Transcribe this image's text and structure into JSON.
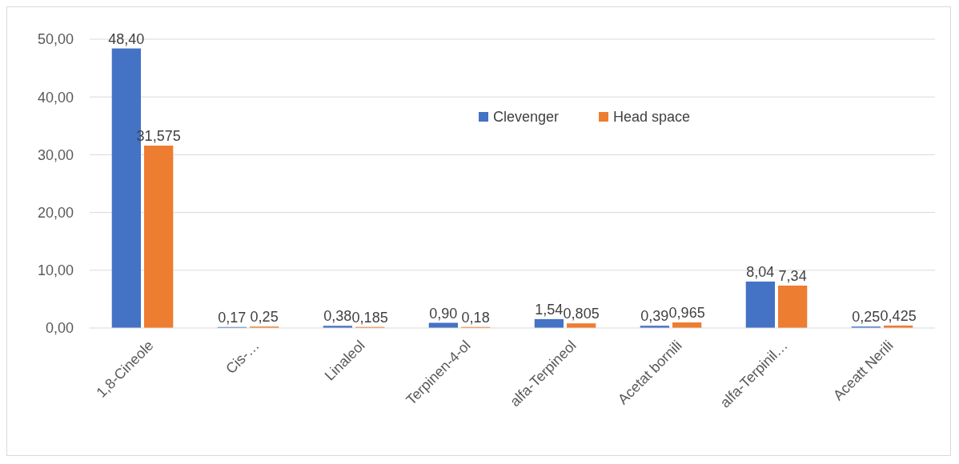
{
  "chart_data": {
    "type": "bar",
    "categories": [
      "1,8-Cineole",
      "Cis-…",
      "Linaleol",
      "Terpinen-4-ol",
      "alfa-Terpineol",
      "Acetat bornili",
      "alfa-Terpinil…",
      "Aceatt Nerili"
    ],
    "series": [
      {
        "name": "Clevenger",
        "color": "#4472c4",
        "values": [
          48.4,
          0.17,
          0.38,
          0.9,
          1.54,
          0.39,
          8.04,
          0.25
        ],
        "value_labels": [
          "48,40",
          "0,17",
          "0,38",
          "0,90",
          "1,54",
          "0,39",
          "8,04",
          "0,25"
        ]
      },
      {
        "name": "Head space",
        "color": "#ed7d31",
        "values": [
          31.575,
          0.25,
          0.185,
          0.18,
          0.805,
          0.965,
          7.34,
          0.425
        ],
        "value_labels": [
          "31,575",
          "0,25",
          "0,185",
          "0,18",
          "0,805",
          "0,965",
          "7,34",
          "0,425"
        ]
      }
    ],
    "ylim": [
      0,
      50
    ],
    "yticks": [
      {
        "value": 0,
        "label": "0,00"
      },
      {
        "value": 10,
        "label": "10,00"
      },
      {
        "value": 20,
        "label": "20,00"
      },
      {
        "value": 30,
        "label": "30,00"
      },
      {
        "value": 40,
        "label": "40,00"
      },
      {
        "value": 50,
        "label": "50,00"
      }
    ],
    "grid": "y",
    "legend": "top"
  }
}
